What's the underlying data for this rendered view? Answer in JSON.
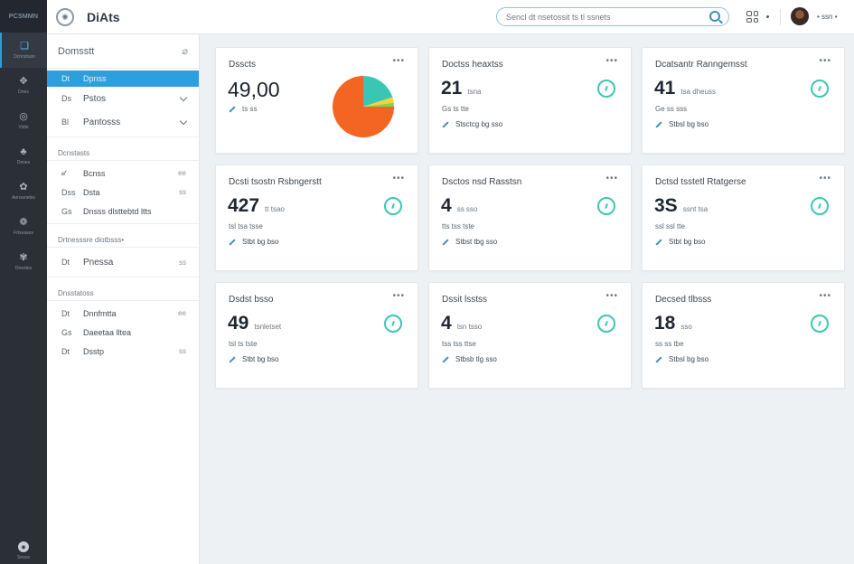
{
  "rail": {
    "logo": "PCSMMN",
    "items": [
      {
        "label": "Dcnnstusn",
        "icon": "❏"
      },
      {
        "label": "Dnes",
        "icon": "✥"
      },
      {
        "label": "Vstts",
        "icon": "◎"
      },
      {
        "label": "Dsnes",
        "icon": "♣"
      },
      {
        "label": "Aonssnetss",
        "icon": "✿"
      },
      {
        "label": "Frtsvases",
        "icon": "❁"
      },
      {
        "label": "Dnsotes",
        "icon": "✾"
      }
    ],
    "bottom_label": "Snoss",
    "bottom_icon": "◉"
  },
  "topbar": {
    "title": "DiAts",
    "search_placeholder": "Sencl dt nsetossit ts tl ssnets",
    "user_label": "• ssn •"
  },
  "sidebar": {
    "title": "Domsstt",
    "items_top": [
      {
        "ic": "Dt",
        "label": "Dpnss",
        "active": true
      },
      {
        "ic": "Ds",
        "label": "Pstos",
        "tail": "chevron"
      },
      {
        "ic": "Bl",
        "label": "Pantosss",
        "tail": "chevron"
      }
    ],
    "section1": "Dcnstasts",
    "items_mid": [
      {
        "ic": "𝒹",
        "label": "Bcnss",
        "tail": "ee"
      },
      {
        "ic": "Dss",
        "label": "Dsta",
        "tail": "ss"
      },
      {
        "ic": "Gs",
        "label": "Dnsss dlsttebtd ltts"
      }
    ],
    "section2": "Drtnesssre diotbsss•",
    "items_mid2": [
      {
        "ic": "Dt",
        "label": "Pnessa",
        "tail": "ss"
      }
    ],
    "section3": "Dnsstatoss",
    "items_bot": [
      {
        "ic": "Dt",
        "label": "Dnnfmtta",
        "tail": "ee"
      },
      {
        "ic": "Gs",
        "label": "Daeetaa lltea"
      },
      {
        "ic": "Dt",
        "label": "Dsstp",
        "tail": "ss"
      }
    ]
  },
  "cards": [
    {
      "title": "Dsscts",
      "value": "49,00",
      "unit": "",
      "sub": "ts ss",
      "link": "",
      "kind": "pie"
    },
    {
      "title": "Doctss heaxtss",
      "value": "21",
      "unit": "tsna",
      "sub": "Gs ts tte",
      "link": "Stsctcg bg sso",
      "kind": "ring"
    },
    {
      "title": "Dcatsantr Ranngemsst",
      "value": "41",
      "unit": "tsa dheuss",
      "sub": "Ge ss sss",
      "link": "Stbsl bg bso",
      "kind": "ring"
    },
    {
      "title": "Dcsti tsostn Rsbngerstt",
      "value": "427",
      "unit": "tt tsao",
      "sub": "tsl tsa tsse",
      "link": "Stbt bg bso",
      "kind": "ring"
    },
    {
      "title": "Dsctos nsd Rasstsn",
      "value": "4",
      "unit": "ss sso",
      "sub": "tts tss tste",
      "link": "Stbst tbg sso",
      "kind": "ring"
    },
    {
      "title": "Dctsd tsstetl Rtatgerse",
      "value": "3S",
      "unit": "ssnt tsa",
      "sub": "ssl ssl tte",
      "link": "Stbt bg bso",
      "kind": "ring"
    },
    {
      "title": "Dsdst bsso",
      "value": "49",
      "unit": "tsnletset",
      "sub": "tsl ts tste",
      "link": "Stbt bg bso",
      "kind": "ring"
    },
    {
      "title": "Dssit lsstss",
      "value": "4",
      "unit": "tsn tsso",
      "sub": "tss tss ttse",
      "link": "Stbsb tlg sso",
      "kind": "ring"
    },
    {
      "title": "Decsed tlbsss",
      "value": "18",
      "unit": "sso",
      "sub": "ss ss tbe",
      "link": "Stbsl bg bso",
      "kind": "ring"
    }
  ],
  "pie_chart": {
    "slices": [
      {
        "value": 20,
        "color": "#39c7b4"
      },
      {
        "value": 3,
        "color": "#f2d33b"
      },
      {
        "value": 2,
        "color": "#8bd24c"
      },
      {
        "value": 75,
        "color": "#f26522"
      }
    ]
  },
  "colors": {
    "accent": "#2e9fde",
    "ring": "#3fc6b1",
    "rail_bg": "#2b3038"
  }
}
